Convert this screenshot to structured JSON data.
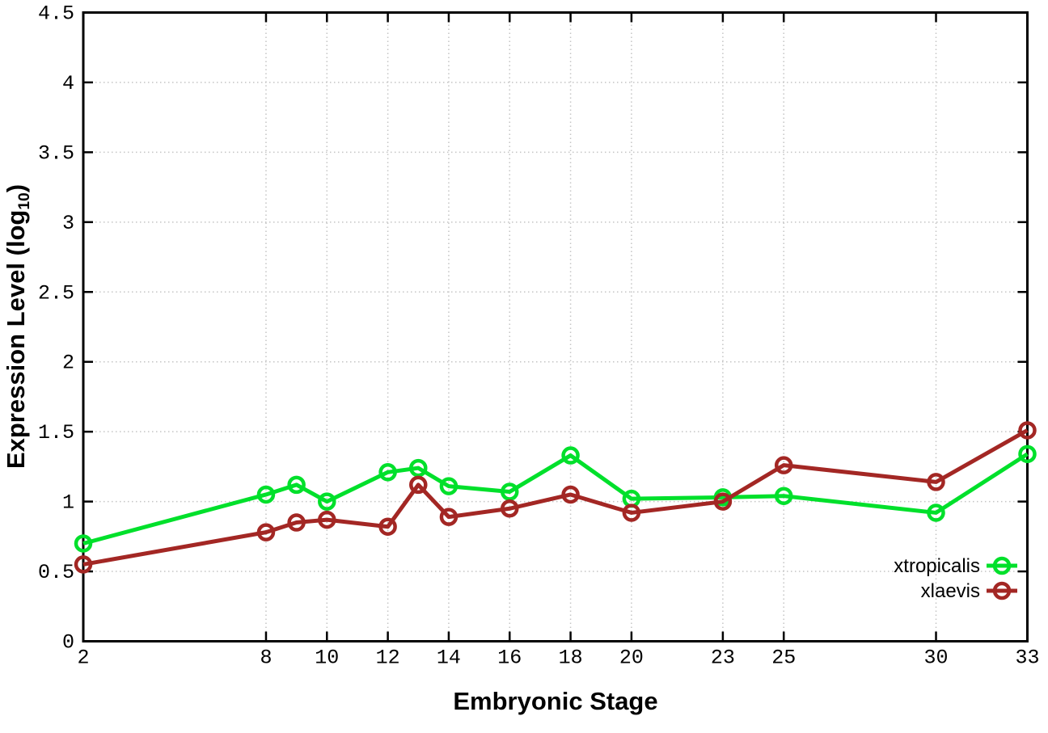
{
  "chart_data": {
    "type": "line",
    "title": "",
    "xlabel": "Embryonic Stage",
    "ylabel": "Expression Level (log10)",
    "ylabel_parts": {
      "main": "Expression Level (log",
      "sub": "10",
      "close": ")"
    },
    "xlim": [
      2,
      33
    ],
    "ylim": [
      0,
      4.5
    ],
    "x_ticks": [
      2,
      8,
      10,
      12,
      14,
      16,
      18,
      20,
      23,
      25,
      30,
      33
    ],
    "y_ticks": [
      0,
      0.5,
      1,
      1.5,
      2,
      2.5,
      3,
      3.5,
      4,
      4.5
    ],
    "grid": true,
    "legend_position": "right, inside plot, near y=0.5",
    "x": [
      2,
      8,
      9,
      10,
      12,
      13,
      14,
      16,
      18,
      20,
      23,
      25,
      30,
      33
    ],
    "series": [
      {
        "name": "xtropicalis",
        "color": "#00e02b",
        "values": [
          0.7,
          1.05,
          1.12,
          1.0,
          1.21,
          1.24,
          1.11,
          1.07,
          1.33,
          1.02,
          1.03,
          1.04,
          0.92,
          1.34
        ]
      },
      {
        "name": "xlaevis",
        "color": "#a32724",
        "values": [
          0.55,
          0.78,
          0.85,
          0.87,
          0.82,
          1.12,
          0.89,
          0.95,
          1.05,
          0.92,
          1.0,
          1.26,
          1.14,
          1.51
        ]
      }
    ]
  },
  "colors": {
    "background": "#ffffff",
    "axis": "#000000",
    "grid": "#c4c4c4",
    "series_green": "#00e02b",
    "series_red": "#a32724"
  }
}
